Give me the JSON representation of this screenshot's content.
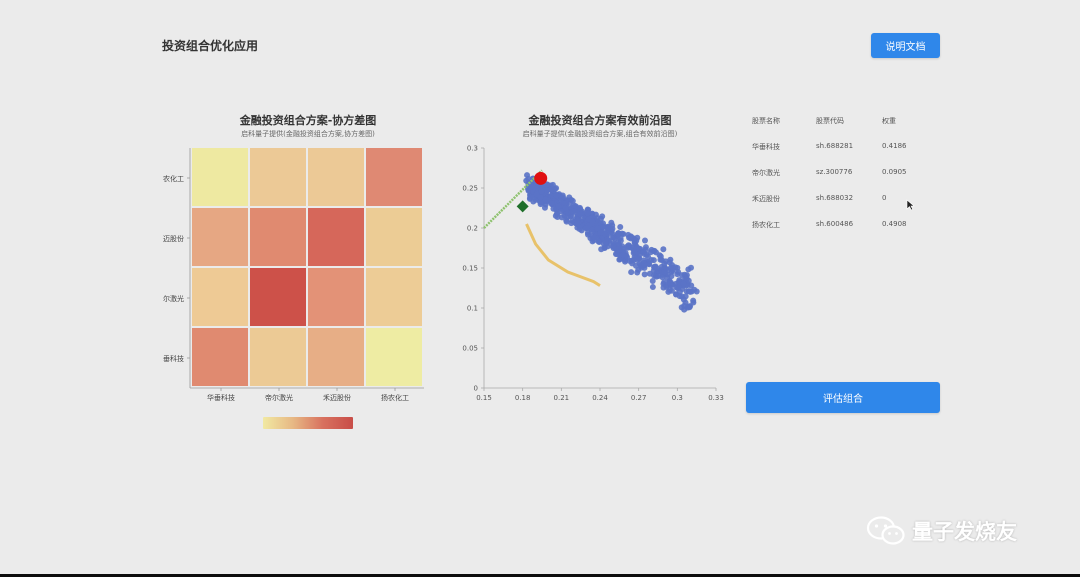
{
  "header": {
    "title": "投资组合优化应用",
    "doc_button": "说明文档"
  },
  "heatmap": {
    "title": "金融投资组合方案-协方差图",
    "subtitle": "启科量子提供(金融投资组合方案,协方差图)",
    "row_labels": [
      "农化工",
      "迈股份",
      "尔激光",
      "垂科技"
    ],
    "col_labels": [
      "华垂科技",
      "帝尔激光",
      "禾迈股份",
      "扬农化工"
    ],
    "cell_colors": [
      [
        "#eee9a1",
        "#ecc996",
        "#ecc996",
        "#df8973"
      ],
      [
        "#e6a783",
        "#e08a70",
        "#d6675a",
        "#eccc95"
      ],
      [
        "#eeca95",
        "#cd5149",
        "#e39277",
        "#edcc96"
      ],
      [
        "#e08a70",
        "#ecca95",
        "#e7ae86",
        "#eeeca3"
      ]
    ],
    "colorbar": {
      "low": "#f1e9a2",
      "high": "#c84d48"
    }
  },
  "frontier": {
    "title": "金融投资组合方案有效前沿图",
    "subtitle": "启科量子提供(金融投资组合方案,组合有效前沿图)"
  },
  "chart_data": {
    "type": "scatter",
    "title": "金融投资组合方案有效前沿图",
    "subtitle": "启科量子提供(金融投资组合方案,组合有效前沿图)",
    "xlim": [
      0.15,
      0.33
    ],
    "ylim": [
      0,
      0.3
    ],
    "x_ticks": [
      "0.15",
      "0.18",
      "0.21",
      "0.24",
      "0.27",
      "0.3",
      "0.33"
    ],
    "y_ticks": [
      "0",
      "0.05",
      "0.1",
      "0.15",
      "0.2",
      "0.25",
      "0.3"
    ],
    "grid": false,
    "series": [
      {
        "color": "#5a73c6",
        "kind": "random_portfolios_cloud",
        "x_range": [
          0.185,
          0.315
        ],
        "y_range": [
          0.13,
          0.27
        ]
      },
      {
        "color": "#e8c26a",
        "kind": "efficient_frontier_curve",
        "points": [
          [
            0.183,
            0.205
          ],
          [
            0.19,
            0.18
          ],
          [
            0.2,
            0.16
          ],
          [
            0.215,
            0.145
          ],
          [
            0.235,
            0.133
          ],
          [
            0.24,
            0.128
          ]
        ]
      },
      {
        "color": "#8ec26e",
        "kind": "capital_market_line",
        "points": [
          [
            0.15,
            0.2
          ],
          [
            0.195,
            0.272
          ]
        ]
      },
      {
        "color": "#e01010",
        "kind": "max_sharpe_point",
        "points": [
          [
            0.194,
            0.262
          ]
        ]
      },
      {
        "color": "#1e6e2a",
        "kind": "min_variance_point",
        "points": [
          [
            0.18,
            0.227
          ]
        ]
      }
    ]
  },
  "weights": {
    "headers": [
      "股票名称",
      "股票代码",
      "权重"
    ],
    "rows": [
      {
        "name": "华垂科技",
        "code": "sh.688281",
        "weight": "0.4186"
      },
      {
        "name": "帝尔激光",
        "code": "sz.300776",
        "weight": "0.0905"
      },
      {
        "name": "禾迈股份",
        "code": "sh.688032",
        "weight": "0"
      },
      {
        "name": "扬农化工",
        "code": "sh.600486",
        "weight": "0.4908"
      }
    ]
  },
  "eval_button": "评估组合",
  "watermark": "量子发烧友"
}
